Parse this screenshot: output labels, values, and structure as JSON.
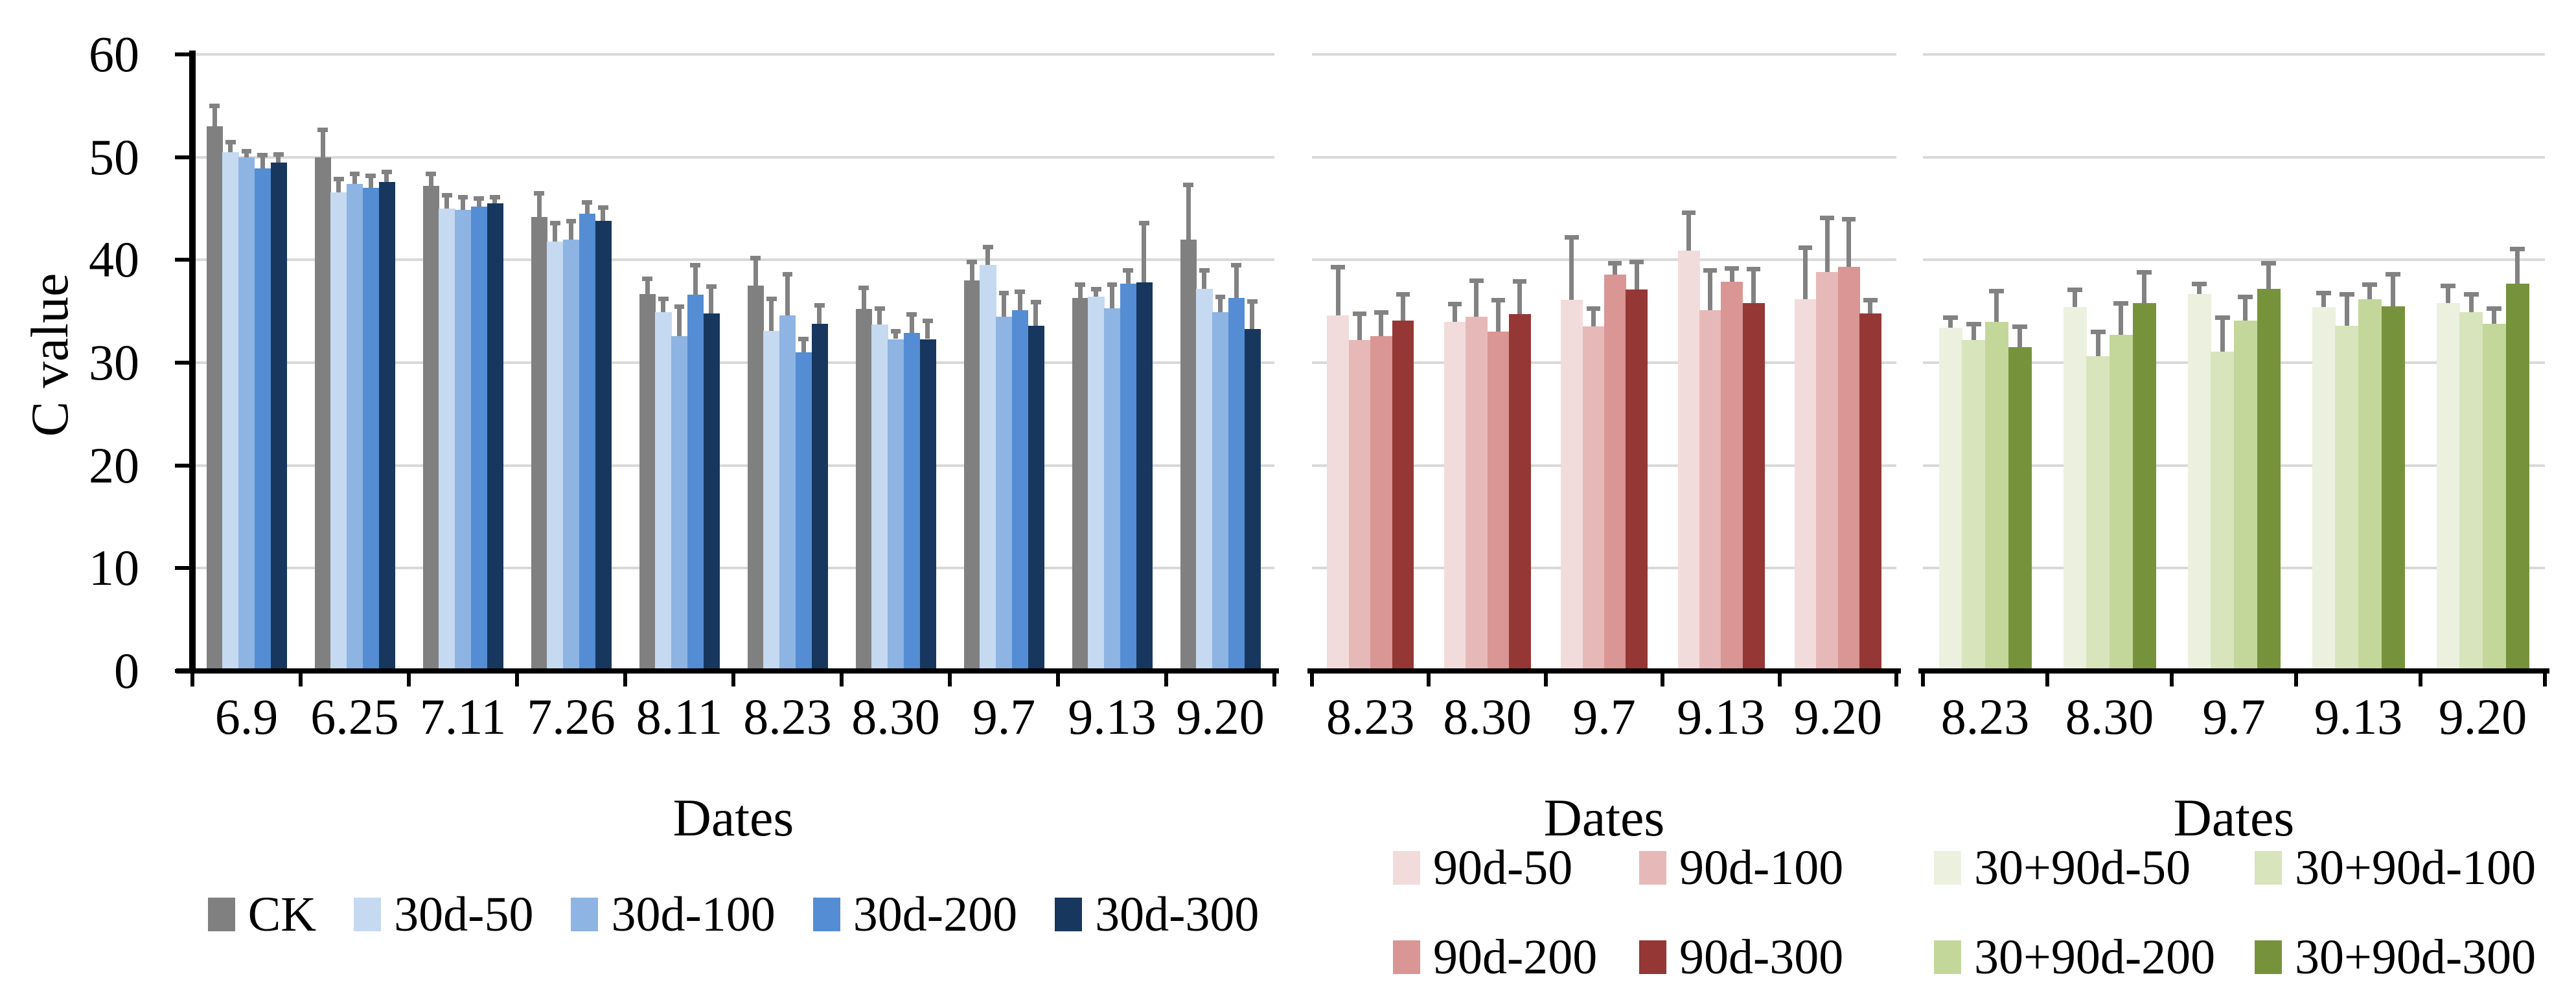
{
  "y_axis": {
    "title": "C value",
    "ticks": [
      0,
      10,
      20,
      30,
      40,
      50,
      60
    ],
    "max": 60
  },
  "colors": {
    "background": "#FFFFFF",
    "gridline": "#D9D9D9",
    "axis": "#000000",
    "error_bar": "#828282"
  },
  "chart_data": [
    {
      "type": "bar",
      "title": "",
      "xlabel": "Dates",
      "ylabel": "C value",
      "ylim": [
        0,
        60
      ],
      "grid": true,
      "legend_position": "bottom-row",
      "categories": [
        "6.9",
        "6.25",
        "7.11",
        "7.26",
        "8.11",
        "8.23",
        "8.30",
        "9.7",
        "9.13",
        "9.20"
      ],
      "series": [
        {
          "name": "CK",
          "color": "#808080",
          "values": [
            53.0,
            50.0,
            47.2,
            44.2,
            36.7,
            37.5,
            35.2,
            38.0,
            36.3,
            42.0
          ],
          "errors": [
            2.2,
            2.9,
            1.4,
            2.5,
            1.7,
            2.9,
            2.3,
            2.0,
            1.5,
            5.5
          ]
        },
        {
          "name": "30d-50",
          "color": "#C5D9F1",
          "values": [
            50.5,
            46.6,
            45.0,
            41.8,
            34.9,
            33.1,
            33.7,
            39.5,
            36.4,
            37.2
          ],
          "errors": [
            1.2,
            1.5,
            1.5,
            2.0,
            1.5,
            3.3,
            1.8,
            2.0,
            1.0,
            2.0
          ]
        },
        {
          "name": "30d-100",
          "color": "#8DB4E2",
          "values": [
            50.0,
            47.4,
            44.9,
            42.0,
            32.6,
            34.6,
            32.3,
            34.5,
            35.3,
            34.9
          ],
          "errors": [
            0.8,
            1.2,
            1.4,
            2.0,
            3.1,
            4.2,
            1.0,
            2.5,
            2.5,
            1.7
          ]
        },
        {
          "name": "30d-200",
          "color": "#548DD4",
          "values": [
            48.9,
            47.0,
            45.2,
            44.5,
            36.6,
            31.0,
            32.9,
            35.1,
            37.7,
            36.3
          ],
          "errors": [
            1.5,
            1.4,
            1.0,
            1.3,
            3.1,
            1.5,
            2.0,
            2.0,
            1.5,
            3.4
          ]
        },
        {
          "name": "30d-300",
          "color": "#17375E",
          "values": [
            49.5,
            47.6,
            45.5,
            43.8,
            34.8,
            33.8,
            32.3,
            33.6,
            37.8,
            33.3
          ],
          "errors": [
            1.0,
            1.2,
            0.8,
            1.5,
            2.8,
            2.0,
            2.0,
            2.5,
            6.0,
            2.9
          ]
        }
      ]
    },
    {
      "type": "bar",
      "title": "",
      "xlabel": "Dates",
      "ylabel": "",
      "ylim": [
        0,
        60
      ],
      "grid": true,
      "legend_position": "bottom-grid",
      "categories": [
        "8.23",
        "8.30",
        "9.7",
        "9.13",
        "9.20"
      ],
      "series": [
        {
          "name": "90d-50",
          "color": "#F2DCDB",
          "values": [
            34.6,
            34.0,
            36.1,
            40.9,
            36.2
          ],
          "errors": [
            4.9,
            1.9,
            6.3,
            3.9,
            5.2
          ]
        },
        {
          "name": "90d-100",
          "color": "#E6B9B8",
          "values": [
            32.2,
            34.5,
            33.5,
            35.1,
            38.8
          ],
          "errors": [
            2.8,
            3.7,
            2.0,
            4.1,
            5.5
          ]
        },
        {
          "name": "90d-200",
          "color": "#D99694",
          "values": [
            32.6,
            33.0,
            38.6,
            37.9,
            39.3
          ],
          "errors": [
            2.5,
            3.3,
            1.3,
            1.5,
            4.9
          ]
        },
        {
          "name": "90d-300",
          "color": "#953735",
          "values": [
            34.1,
            34.7,
            37.1,
            35.8,
            34.8
          ],
          "errors": [
            2.8,
            3.4,
            2.9,
            3.5,
            1.5
          ]
        }
      ]
    },
    {
      "type": "bar",
      "title": "",
      "xlabel": "Dates",
      "ylabel": "",
      "ylim": [
        0,
        60
      ],
      "grid": true,
      "legend_position": "bottom-grid",
      "categories": [
        "8.23",
        "8.30",
        "9.7",
        "9.13",
        "9.20"
      ],
      "series": [
        {
          "name": "30+90d-50",
          "color": "#EBF1DE",
          "values": [
            33.4,
            35.4,
            36.7,
            35.4,
            35.8
          ],
          "errors": [
            1.2,
            1.9,
            1.2,
            1.6,
            1.9
          ]
        },
        {
          "name": "30+90d-100",
          "color": "#D8E4BC",
          "values": [
            32.2,
            30.6,
            31.1,
            33.6,
            34.9
          ],
          "errors": [
            1.8,
            2.6,
            3.5,
            3.3,
            2.0
          ]
        },
        {
          "name": "30+90d-200",
          "color": "#C4D79B",
          "values": [
            34.0,
            32.7,
            34.1,
            36.2,
            33.8
          ],
          "errors": [
            3.2,
            3.3,
            2.5,
            1.6,
            1.7
          ]
        },
        {
          "name": "30+90d-300",
          "color": "#76933C",
          "values": [
            31.5,
            35.8,
            37.2,
            35.5,
            37.7
          ],
          "errors": [
            2.2,
            3.2,
            2.7,
            3.3,
            3.6
          ]
        }
      ]
    }
  ]
}
